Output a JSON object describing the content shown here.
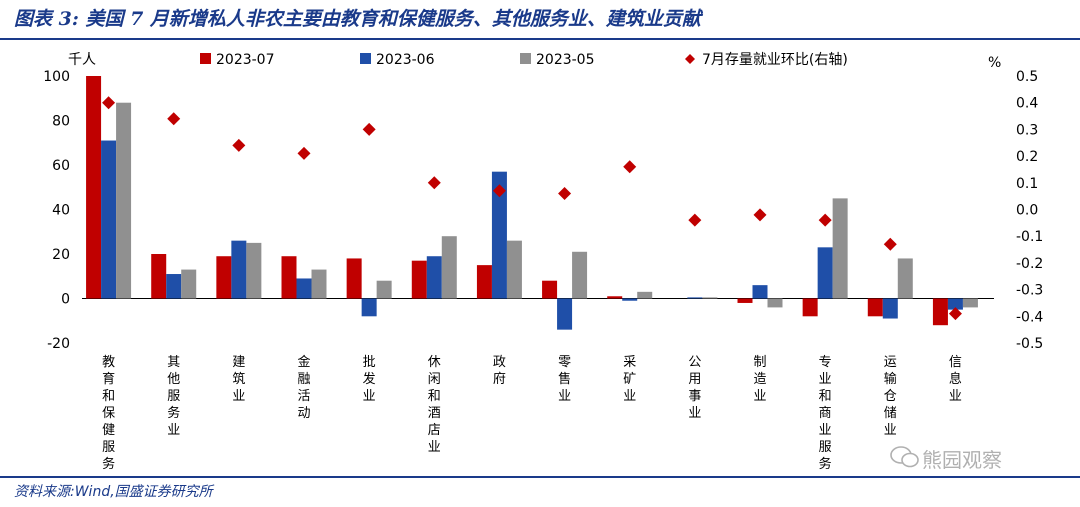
{
  "page": {
    "title": "图表 3:  美国 7 月新增私人非农主要由教育和保健服务、其他服务业、建筑业贡献",
    "source": "资料来源:Wind,国盛证券研究所",
    "watermark": "熊园观察"
  },
  "chart_data": {
    "type": "bar",
    "left_axis_unit": "千人",
    "right_axis_unit": "%",
    "ylim": [
      -20,
      100
    ],
    "y_ticks": [
      -20,
      0,
      20,
      40,
      60,
      80,
      100
    ],
    "y2lim": [
      -0.5,
      0.5
    ],
    "y2_ticks": [
      "-0.5",
      "-0.4",
      "-0.3",
      "-0.2",
      "-0.1",
      "0.0",
      "0.1",
      "0.2",
      "0.3",
      "0.4",
      "0.5"
    ],
    "categories": [
      "教育和保健服务",
      "其他服务业",
      "建筑业",
      "金融活动",
      "批发业",
      "休闲和酒店业",
      "政府",
      "零售业",
      "采矿业",
      "公用事业",
      "制造业",
      "专业和商业服务",
      "运输仓储业",
      "信息业"
    ],
    "series": [
      {
        "name": "2023-07",
        "color": "#c00000",
        "axis": "left",
        "values": [
          100,
          20,
          19,
          19,
          18,
          17,
          15,
          8,
          1,
          0,
          -2,
          -8,
          -8,
          -12
        ]
      },
      {
        "name": "2023-06",
        "color": "#1f4fa8",
        "axis": "left",
        "values": [
          71,
          11,
          26,
          9,
          -8,
          19,
          57,
          -14,
          -1,
          0.5,
          6,
          23,
          -9,
          -5
        ]
      },
      {
        "name": "2023-05",
        "color": "#909090",
        "axis": "left",
        "values": [
          88,
          13,
          25,
          13,
          8,
          28,
          26,
          21,
          3,
          0.5,
          -4,
          45,
          18,
          -4
        ]
      },
      {
        "name": "7月存量就业环比(右轴)",
        "color": "#c00000",
        "axis": "right",
        "marker": "diamond",
        "values": [
          0.4,
          0.34,
          0.24,
          0.21,
          0.3,
          0.1,
          0.07,
          0.06,
          0.16,
          -0.04,
          -0.02,
          -0.04,
          -0.13,
          -0.39
        ]
      }
    ],
    "legend_placement": "top",
    "grid": false
  }
}
